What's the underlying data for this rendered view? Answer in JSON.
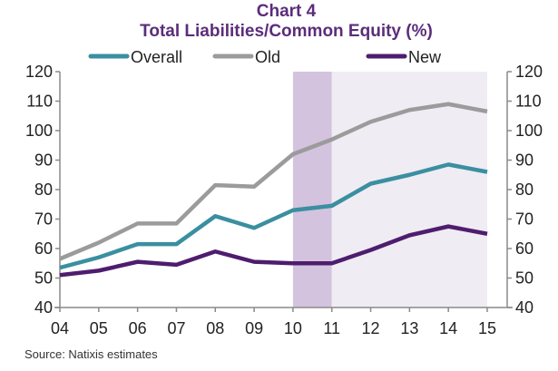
{
  "chart_data": {
    "type": "line",
    "title": "Chart 4",
    "subtitle": "Total Liabilities/Common Equity (%)",
    "xlabel": "",
    "ylabel": "",
    "categories": [
      "04",
      "05",
      "06",
      "07",
      "08",
      "09",
      "10",
      "11",
      "12",
      "13",
      "14",
      "15"
    ],
    "series": [
      {
        "name": "Overall",
        "color": "#3a8fa0",
        "values": [
          53.5,
          57,
          61.5,
          61.5,
          71,
          67,
          73,
          74.5,
          82,
          85,
          88.5,
          86
        ]
      },
      {
        "name": "Old",
        "color": "#9b9b9b",
        "values": [
          56.5,
          62,
          68.5,
          68.5,
          81.5,
          81,
          92,
          97,
          103,
          107,
          109,
          106.5
        ]
      },
      {
        "name": "New",
        "color": "#4e1d6e",
        "values": [
          51,
          52.5,
          55.5,
          54.5,
          59,
          55.5,
          55,
          55,
          59.5,
          64.5,
          67.5,
          65
        ]
      }
    ],
    "ylim": [
      40,
      120
    ],
    "yticks": [
      40,
      50,
      60,
      70,
      80,
      90,
      100,
      110,
      120
    ],
    "secondary_yticks": [
      40,
      50,
      60,
      70,
      80,
      90,
      100,
      110,
      120
    ],
    "shaded_regions": [
      {
        "from": "10",
        "to": "11",
        "color": "#d4c3de",
        "label": "dark band"
      },
      {
        "from": "11",
        "to": "15",
        "color": "#efecf3",
        "label": "light band"
      }
    ],
    "legend": {
      "placement": "top-center",
      "entries": [
        "Overall",
        "Old",
        "New"
      ]
    },
    "grid": false,
    "source": "Source: Natixis estimates"
  }
}
